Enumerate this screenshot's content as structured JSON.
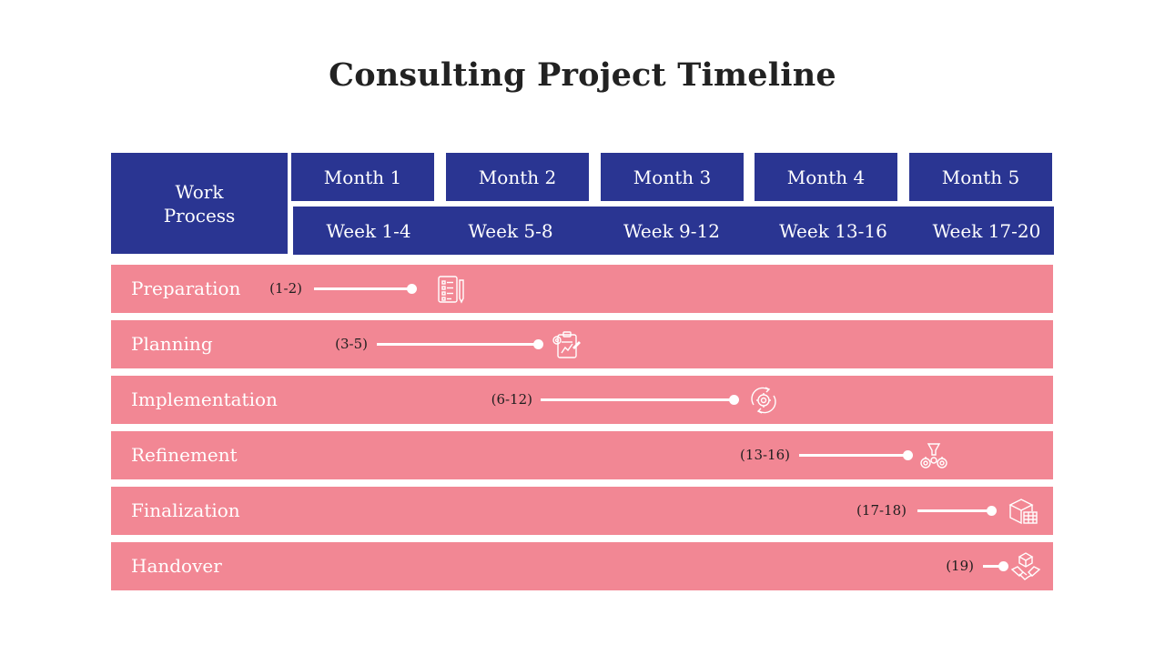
{
  "title": "Consulting Project Timeline",
  "header": {
    "work_process": "Work Process",
    "months": [
      "Month 1",
      "Month 2",
      "Month 3",
      "Month 4",
      "Month 5"
    ],
    "weeks": [
      "Week 1-4",
      "Week 5-8",
      "Week 9-12",
      "Week 13-16",
      "Week 17-20"
    ]
  },
  "phases": [
    {
      "label": "Preparation",
      "range": "(1-2)",
      "icon": "checklist-icon"
    },
    {
      "label": "Planning",
      "range": "(3-5)",
      "icon": "planning-clipboard-icon"
    },
    {
      "label": "Implementation",
      "range": "(6-12)",
      "icon": "gear-cycle-icon"
    },
    {
      "label": "Refinement",
      "range": "(13-16)",
      "icon": "gears-funnel-icon"
    },
    {
      "label": "Finalization",
      "range": "(17-18)",
      "icon": "package-icon"
    },
    {
      "label": "Handover",
      "range": "(19)",
      "icon": "handshake-icon"
    }
  ],
  "colors": {
    "header": "#2a3592",
    "row": "#f28794",
    "bar": "#ffffff",
    "title": "#222222"
  }
}
